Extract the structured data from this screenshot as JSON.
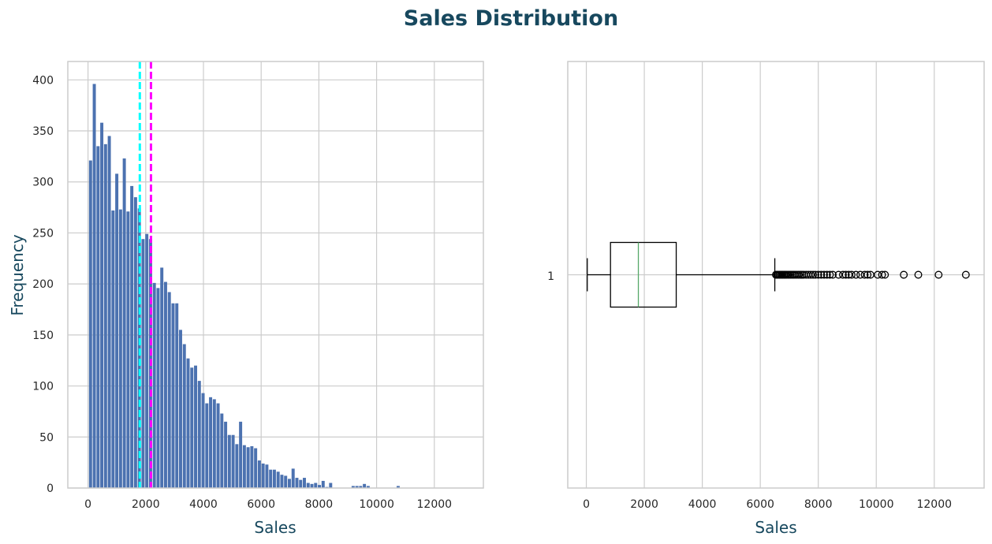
{
  "title": "Sales Distribution",
  "colors": {
    "title": "#17485e",
    "label": "#17485e",
    "bars": "#4c72b0",
    "mean_line": "#ff00ff",
    "median_line": "#00ffff",
    "grid": "#cccccc",
    "frame": "#cccccc",
    "box": "#000000",
    "box_median": "#55a868"
  },
  "chart_data": [
    {
      "type": "bar",
      "subtype": "histogram",
      "xlabel": "Sales",
      "ylabel": "Frequency",
      "xlim": [
        -700,
        13700
      ],
      "ylim": [
        0,
        418
      ],
      "xticks": [
        0,
        2000,
        4000,
        6000,
        8000,
        10000,
        12000
      ],
      "yticks": [
        0,
        50,
        100,
        150,
        200,
        250,
        300,
        350,
        400
      ],
      "grid": true,
      "bin_start": 33,
      "bin_width": 130,
      "values": [
        321,
        396,
        335,
        358,
        337,
        345,
        272,
        308,
        273,
        323,
        271,
        296,
        285,
        274,
        244,
        249,
        244,
        201,
        196,
        216,
        202,
        192,
        181,
        181,
        155,
        141,
        127,
        118,
        120,
        105,
        93,
        83,
        89,
        87,
        83,
        73,
        65,
        52,
        52,
        43,
        65,
        42,
        40,
        41,
        39,
        27,
        24,
        23,
        18,
        18,
        16,
        13,
        12,
        9,
        19,
        10,
        8,
        10,
        5,
        4,
        5,
        3,
        7,
        1,
        5,
        0,
        0,
        0,
        0,
        0,
        2,
        2,
        2,
        4,
        2,
        0,
        0,
        0,
        0,
        0,
        0,
        0,
        2,
        0,
        0,
        0,
        0,
        0,
        0,
        0,
        0,
        0,
        0,
        0,
        0,
        0,
        0,
        0,
        0,
        0
      ],
      "vlines": [
        {
          "kind": "median",
          "x": 1795,
          "color": "#00ffff",
          "style": "dashed"
        },
        {
          "kind": "mean",
          "x": 2181,
          "color": "#ff00ff",
          "style": "dashed"
        }
      ]
    },
    {
      "type": "boxplot",
      "orientation": "horizontal",
      "xlabel": "Sales",
      "ytick_label": "1",
      "xlim": [
        -640,
        13720
      ],
      "xticks": [
        0,
        2000,
        4000,
        6000,
        8000,
        10000,
        12000
      ],
      "grid": true,
      "whisker_low": 33,
      "q1": 834,
      "median": 1795,
      "q3": 3101,
      "whisker_high": 6501,
      "outliers": [
        6540,
        6580,
        6620,
        6660,
        6700,
        6740,
        6780,
        6820,
        6860,
        6900,
        6950,
        7000,
        7050,
        7100,
        7150,
        7200,
        7260,
        7320,
        7380,
        7440,
        7500,
        7580,
        7660,
        7740,
        7820,
        7900,
        8000,
        8100,
        8200,
        8300,
        8400,
        8500,
        8700,
        8850,
        8950,
        9050,
        9150,
        9300,
        9450,
        9600,
        9700,
        9800,
        10050,
        10200,
        10300,
        10950,
        11450,
        12150,
        13090
      ]
    }
  ]
}
